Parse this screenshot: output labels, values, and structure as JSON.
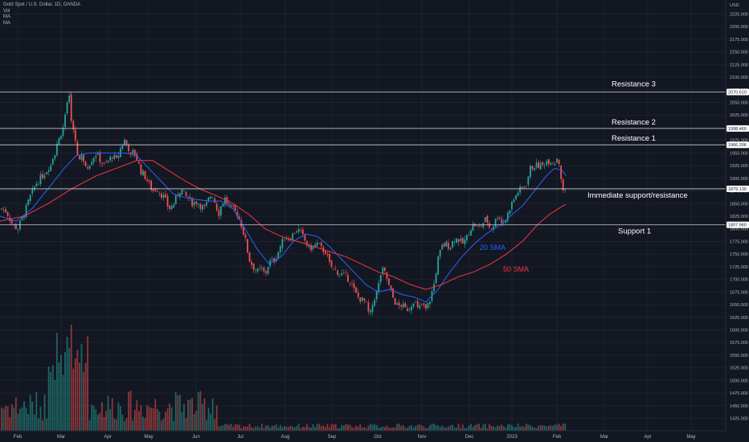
{
  "header": {
    "symbol_line": "Gold Spot / U.S. Dollar, 1D, OANDA",
    "indicators": [
      "Vol",
      "MA",
      "MA"
    ],
    "currency": "USD"
  },
  "chart_data": {
    "type": "candlestick",
    "ylim": [
      1410,
      2240
    ],
    "y_ticks": [
      1425,
      1450,
      1475,
      1500,
      1525,
      1550,
      1575,
      1600,
      1625,
      1650,
      1675,
      1700,
      1725,
      1750,
      1775,
      1800,
      1825,
      1850,
      1875,
      1900,
      1925,
      1950,
      1975,
      2000,
      2025,
      2050,
      2075,
      2100,
      2125,
      2150,
      2175,
      2200,
      2225
    ],
    "x_ticks": [
      "Feb",
      "Mar",
      "Apr",
      "May",
      "Jun",
      "Jul",
      "Aug",
      "Sep",
      "Oct",
      "Nov",
      "Dec",
      "2023",
      "Feb",
      "Mar",
      "Apr",
      "May"
    ],
    "levels": [
      {
        "name": "Resistance 3",
        "value": 2070.61
      },
      {
        "name": "Resistance 2",
        "value": 1998.46
      },
      {
        "name": "Resistance 1",
        "value": 1966.206
      },
      {
        "name": "Immediate support/resistance",
        "value": 1879.13
      },
      {
        "name": "Support 1",
        "value": 1807.96
      }
    ],
    "price_tags": [
      "2070.610",
      "1998.460",
      "1966.206",
      "1879.130",
      "1807.960"
    ],
    "series_labels": [
      {
        "name": "20 SMA",
        "color": "#2962ff"
      },
      {
        "name": "50 SMA",
        "color": "#f23645"
      }
    ],
    "close_path": [
      [
        0,
        1840
      ],
      [
        8,
        1835
      ],
      [
        15,
        1810
      ],
      [
        22,
        1800
      ],
      [
        30,
        1830
      ],
      [
        38,
        1865
      ],
      [
        45,
        1890
      ],
      [
        53,
        1905
      ],
      [
        60,
        1920
      ],
      [
        68,
        1950
      ],
      [
        75,
        1985
      ],
      [
        80,
        2010
      ],
      [
        83,
        2040
      ],
      [
        86,
        2060
      ],
      [
        90,
        2000
      ],
      [
        94,
        1975
      ],
      [
        98,
        1935
      ],
      [
        102,
        1945
      ],
      [
        106,
        1930
      ],
      [
        110,
        1925
      ],
      [
        115,
        1940
      ],
      [
        120,
        1950
      ],
      [
        125,
        1935
      ],
      [
        130,
        1925
      ],
      [
        135,
        1935
      ],
      [
        140,
        1945
      ],
      [
        145,
        1935
      ],
      [
        150,
        1960
      ],
      [
        155,
        1975
      ],
      [
        160,
        1960
      ],
      [
        163,
        1940
      ],
      [
        166,
        1955
      ],
      [
        170,
        1940
      ],
      [
        175,
        1915
      ],
      [
        180,
        1905
      ],
      [
        185,
        1890
      ],
      [
        190,
        1875
      ],
      [
        195,
        1880
      ],
      [
        200,
        1870
      ],
      [
        205,
        1860
      ],
      [
        210,
        1840
      ],
      [
        215,
        1845
      ],
      [
        220,
        1865
      ],
      [
        225,
        1880
      ],
      [
        230,
        1865
      ],
      [
        235,
        1860
      ],
      [
        240,
        1850
      ],
      [
        245,
        1855
      ],
      [
        250,
        1845
      ],
      [
        255,
        1840
      ],
      [
        260,
        1860
      ],
      [
        264,
        1870
      ],
      [
        268,
        1850
      ],
      [
        272,
        1830
      ],
      [
        276,
        1850
      ],
      [
        280,
        1860
      ],
      [
        285,
        1845
      ],
      [
        290,
        1838
      ],
      [
        295,
        1830
      ],
      [
        300,
        1810
      ],
      [
        305,
        1780
      ],
      [
        310,
        1740
      ],
      [
        315,
        1725
      ],
      [
        320,
        1715
      ],
      [
        325,
        1720
      ],
      [
        330,
        1710
      ],
      [
        335,
        1735
      ],
      [
        340,
        1735
      ],
      [
        345,
        1750
      ],
      [
        350,
        1770
      ],
      [
        355,
        1785
      ],
      [
        360,
        1780
      ],
      [
        365,
        1790
      ],
      [
        370,
        1800
      ],
      [
        375,
        1790
      ],
      [
        380,
        1775
      ],
      [
        385,
        1760
      ],
      [
        390,
        1765
      ],
      [
        395,
        1770
      ],
      [
        400,
        1760
      ],
      [
        405,
        1755
      ],
      [
        410,
        1730
      ],
      [
        415,
        1720
      ],
      [
        420,
        1715
      ],
      [
        425,
        1710
      ],
      [
        430,
        1705
      ],
      [
        435,
        1700
      ],
      [
        440,
        1680
      ],
      [
        445,
        1665
      ],
      [
        450,
        1660
      ],
      [
        455,
        1655
      ],
      [
        460,
        1625
      ],
      [
        465,
        1660
      ],
      [
        470,
        1680
      ],
      [
        475,
        1720
      ],
      [
        480,
        1710
      ],
      [
        485,
        1680
      ],
      [
        490,
        1660
      ],
      [
        495,
        1645
      ],
      [
        500,
        1650
      ],
      [
        505,
        1640
      ],
      [
        510,
        1645
      ],
      [
        515,
        1660
      ],
      [
        520,
        1640
      ],
      [
        525,
        1650
      ],
      [
        530,
        1640
      ],
      [
        535,
        1660
      ],
      [
        540,
        1690
      ],
      [
        545,
        1740
      ],
      [
        550,
        1765
      ],
      [
        555,
        1770
      ],
      [
        560,
        1765
      ],
      [
        565,
        1780
      ],
      [
        570,
        1780
      ],
      [
        575,
        1770
      ],
      [
        580,
        1780
      ],
      [
        585,
        1800
      ],
      [
        590,
        1810
      ],
      [
        595,
        1800
      ],
      [
        600,
        1810
      ],
      [
        605,
        1820
      ],
      [
        610,
        1800
      ],
      [
        615,
        1810
      ],
      [
        620,
        1830
      ],
      [
        625,
        1810
      ],
      [
        630,
        1820
      ],
      [
        635,
        1845
      ],
      [
        640,
        1860
      ],
      [
        645,
        1875
      ],
      [
        650,
        1880
      ],
      [
        655,
        1890
      ],
      [
        660,
        1920
      ],
      [
        665,
        1925
      ],
      [
        670,
        1925
      ],
      [
        675,
        1925
      ],
      [
        680,
        1935
      ],
      [
        685,
        1935
      ],
      [
        690,
        1930
      ],
      [
        694,
        1945
      ],
      [
        697,
        1920
      ],
      [
        700,
        1870
      ],
      [
        704,
        1880
      ]
    ],
    "sma20_path": [
      [
        0,
        1825
      ],
      [
        20,
        1815
      ],
      [
        40,
        1840
      ],
      [
        60,
        1880
      ],
      [
        80,
        1920
      ],
      [
        95,
        1945
      ],
      [
        110,
        1950
      ],
      [
        125,
        1950
      ],
      [
        140,
        1950
      ],
      [
        155,
        1950
      ],
      [
        170,
        1945
      ],
      [
        185,
        1920
      ],
      [
        200,
        1895
      ],
      [
        215,
        1870
      ],
      [
        230,
        1862
      ],
      [
        245,
        1858
      ],
      [
        260,
        1855
      ],
      [
        275,
        1855
      ],
      [
        290,
        1840
      ],
      [
        305,
        1800
      ],
      [
        320,
        1760
      ],
      [
        335,
        1730
      ],
      [
        350,
        1745
      ],
      [
        365,
        1775
      ],
      [
        380,
        1790
      ],
      [
        395,
        1785
      ],
      [
        410,
        1765
      ],
      [
        425,
        1740
      ],
      [
        440,
        1715
      ],
      [
        455,
        1690
      ],
      [
        470,
        1675
      ],
      [
        485,
        1680
      ],
      [
        500,
        1670
      ],
      [
        515,
        1665
      ],
      [
        530,
        1655
      ],
      [
        545,
        1680
      ],
      [
        560,
        1715
      ],
      [
        575,
        1745
      ],
      [
        590,
        1770
      ],
      [
        605,
        1790
      ],
      [
        620,
        1805
      ],
      [
        635,
        1825
      ],
      [
        650,
        1845
      ],
      [
        665,
        1875
      ],
      [
        680,
        1905
      ],
      [
        690,
        1920
      ],
      [
        700,
        1915
      ],
      [
        704,
        1905
      ]
    ],
    "sma50_path": [
      [
        0,
        1815
      ],
      [
        30,
        1825
      ],
      [
        60,
        1850
      ],
      [
        90,
        1880
      ],
      [
        120,
        1905
      ],
      [
        145,
        1920
      ],
      [
        170,
        1935
      ],
      [
        190,
        1935
      ],
      [
        210,
        1915
      ],
      [
        230,
        1895
      ],
      [
        250,
        1878
      ],
      [
        270,
        1865
      ],
      [
        290,
        1850
      ],
      [
        310,
        1828
      ],
      [
        330,
        1800
      ],
      [
        350,
        1785
      ],
      [
        370,
        1775
      ],
      [
        390,
        1765
      ],
      [
        410,
        1755
      ],
      [
        430,
        1745
      ],
      [
        450,
        1730
      ],
      [
        470,
        1715
      ],
      [
        490,
        1705
      ],
      [
        510,
        1690
      ],
      [
        530,
        1680
      ],
      [
        550,
        1690
      ],
      [
        570,
        1705
      ],
      [
        590,
        1715
      ],
      [
        610,
        1730
      ],
      [
        630,
        1750
      ],
      [
        650,
        1775
      ],
      [
        670,
        1810
      ],
      [
        685,
        1830
      ],
      [
        700,
        1845
      ],
      [
        704,
        1848
      ]
    ]
  }
}
